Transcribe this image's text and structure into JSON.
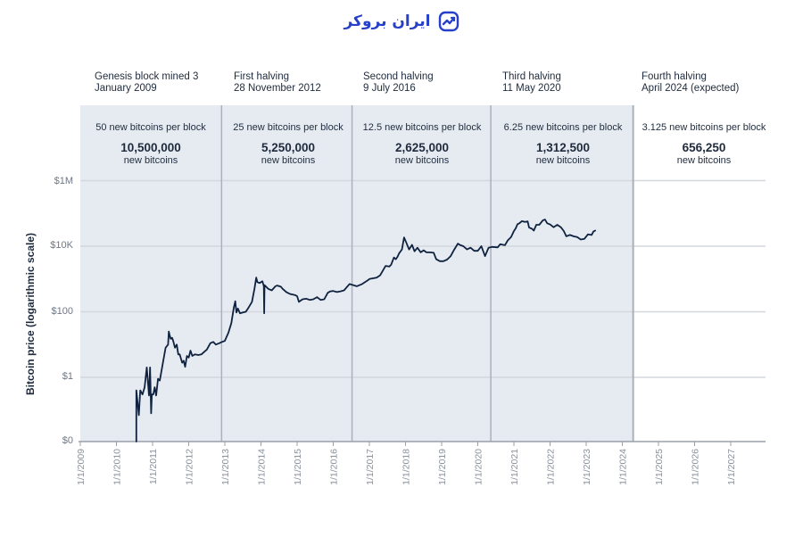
{
  "brand": {
    "name": "ایران بروکر",
    "icon": "chart-trend-logo-icon",
    "color": "#2740c9"
  },
  "halvings": [
    {
      "title": "Genesis block mined 3",
      "date": "January 2009"
    },
    {
      "title": "First halving",
      "date": "28 November 2012"
    },
    {
      "title": "Second halving",
      "date": "9 July 2016"
    },
    {
      "title": "Third halving",
      "date": "11 May 2020"
    },
    {
      "title": "Fourth halving",
      "date": "April 2024 (expected)"
    }
  ],
  "eras": [
    {
      "reward": "50 new bitcoins per block",
      "count": "10,500,000",
      "unit": "new bitcoins"
    },
    {
      "reward": "25 new bitcoins per block",
      "count": "5,250,000",
      "unit": "new bitcoins"
    },
    {
      "reward": "12.5 new bitcoins per block",
      "count": "2,625,000",
      "unit": "new bitcoins"
    },
    {
      "reward": "6.25 new bitcoins per block",
      "count": "1,312,500",
      "unit": "new bitcoins"
    },
    {
      "reward": "3.125 new bitcoins per block",
      "count": "656,250",
      "unit": "new bitcoins"
    }
  ],
  "colors": {
    "shade": "#e6ebf1",
    "grid": "#d4d8de",
    "axis": "#9aa0a8",
    "line": "#0f2240",
    "divider": "#aab1bb"
  },
  "chart_data": {
    "type": "line",
    "title": "",
    "xlabel": "",
    "ylabel": "Bitcoin price (logarithmic scale)",
    "y_scale": "log",
    "y_ticks": [
      {
        "value": 0,
        "label": "$0"
      },
      {
        "value": 1,
        "label": "$1"
      },
      {
        "value": 100,
        "label": "$100"
      },
      {
        "value": 10000,
        "label": "$10K"
      },
      {
        "value": 1000000,
        "label": "$1M"
      }
    ],
    "x_ticks": [
      "1/1/2009",
      "1/1/2010",
      "1/1/2011",
      "1/1/2012",
      "1/1/2013",
      "1/1/2014",
      "1/1/2015",
      "1/1/2016",
      "1/1/2017",
      "1/1/2018",
      "1/1/2019",
      "1/1/2020",
      "1/1/2021",
      "1/1/2022",
      "1/1/2023",
      "1/1/2024",
      "1/1/2025",
      "1/1/2026",
      "1/1/2027"
    ],
    "xlim": [
      2009,
      2027.8
    ],
    "shaded_eras": [
      [
        2009.0,
        2012.91
      ],
      [
        2012.91,
        2016.52
      ],
      [
        2016.52,
        2020.36
      ],
      [
        2020.36,
        2024.3
      ]
    ],
    "halving_dates": [
      2012.91,
      2016.52,
      2020.36,
      2024.3
    ],
    "series": [
      {
        "name": "Bitcoin price (USD)",
        "points": [
          [
            2010.55,
            0
          ],
          [
            2010.55,
            0.4
          ],
          [
            2010.62,
            0.07
          ],
          [
            2010.66,
            0.4
          ],
          [
            2010.72,
            0.3
          ],
          [
            2010.78,
            0.5
          ],
          [
            2010.84,
            2.0
          ],
          [
            2010.9,
            0.28
          ],
          [
            2010.93,
            2.0
          ],
          [
            2010.96,
            0.08
          ],
          [
            2010.98,
            0.3
          ],
          [
            2011.02,
            0.3
          ],
          [
            2011.06,
            0.5
          ],
          [
            2011.1,
            0.28
          ],
          [
            2011.15,
            0.9
          ],
          [
            2011.2,
            0.8
          ],
          [
            2011.28,
            2.5
          ],
          [
            2011.36,
            8
          ],
          [
            2011.43,
            10
          ],
          [
            2011.45,
            25
          ],
          [
            2011.47,
            20
          ],
          [
            2011.5,
            15
          ],
          [
            2011.54,
            16
          ],
          [
            2011.57,
            13
          ],
          [
            2011.62,
            8
          ],
          [
            2011.67,
            10
          ],
          [
            2011.71,
            5
          ],
          [
            2011.75,
            5
          ],
          [
            2011.82,
            2.8
          ],
          [
            2011.86,
            3.2
          ],
          [
            2011.9,
            2.1
          ],
          [
            2011.95,
            4.5
          ],
          [
            2012.0,
            4
          ],
          [
            2012.05,
            6.5
          ],
          [
            2012.1,
            4.5
          ],
          [
            2012.17,
            5
          ],
          [
            2012.27,
            4.8
          ],
          [
            2012.35,
            5
          ],
          [
            2012.43,
            6
          ],
          [
            2012.5,
            7
          ],
          [
            2012.6,
            11
          ],
          [
            2012.68,
            12
          ],
          [
            2012.75,
            10
          ],
          [
            2012.85,
            11
          ],
          [
            2012.92,
            12
          ],
          [
            2013.0,
            13
          ],
          [
            2013.1,
            23
          ],
          [
            2013.18,
            45
          ],
          [
            2013.25,
            135
          ],
          [
            2013.29,
            210
          ],
          [
            2013.32,
            95
          ],
          [
            2013.36,
            125
          ],
          [
            2013.42,
            90
          ],
          [
            2013.5,
            95
          ],
          [
            2013.58,
            100
          ],
          [
            2013.65,
            130
          ],
          [
            2013.75,
            200
          ],
          [
            2013.82,
            500
          ],
          [
            2013.87,
            1100
          ],
          [
            2013.9,
            800
          ],
          [
            2013.96,
            750
          ],
          [
            2014.0,
            800
          ],
          [
            2014.04,
            850
          ],
          [
            2014.08,
            600
          ],
          [
            2014.09,
            90
          ],
          [
            2014.1,
            650
          ],
          [
            2014.2,
            500
          ],
          [
            2014.3,
            450
          ],
          [
            2014.4,
            600
          ],
          [
            2014.45,
            630
          ],
          [
            2014.55,
            580
          ],
          [
            2014.6,
            500
          ],
          [
            2014.7,
            400
          ],
          [
            2014.8,
            350
          ],
          [
            2014.95,
            320
          ],
          [
            2015.0,
            300
          ],
          [
            2015.05,
            200
          ],
          [
            2015.15,
            240
          ],
          [
            2015.25,
            250
          ],
          [
            2015.35,
            230
          ],
          [
            2015.45,
            240
          ],
          [
            2015.55,
            280
          ],
          [
            2015.65,
            230
          ],
          [
            2015.75,
            240
          ],
          [
            2015.85,
            380
          ],
          [
            2015.92,
            420
          ],
          [
            2016.0,
            430
          ],
          [
            2016.1,
            400
          ],
          [
            2016.2,
            420
          ],
          [
            2016.3,
            450
          ],
          [
            2016.45,
            700
          ],
          [
            2016.55,
            650
          ],
          [
            2016.65,
            600
          ],
          [
            2016.8,
            700
          ],
          [
            2016.95,
            900
          ],
          [
            2017.0,
            1000
          ],
          [
            2017.1,
            1050
          ],
          [
            2017.2,
            1100
          ],
          [
            2017.3,
            1300
          ],
          [
            2017.45,
            2500
          ],
          [
            2017.55,
            2400
          ],
          [
            2017.6,
            2700
          ],
          [
            2017.68,
            4500
          ],
          [
            2017.73,
            4000
          ],
          [
            2017.78,
            4800
          ],
          [
            2017.82,
            6000
          ],
          [
            2017.9,
            8000
          ],
          [
            2017.96,
            18500
          ],
          [
            2018.02,
            13000
          ],
          [
            2018.1,
            8000
          ],
          [
            2018.18,
            11000
          ],
          [
            2018.25,
            7000
          ],
          [
            2018.33,
            9000
          ],
          [
            2018.42,
            6500
          ],
          [
            2018.5,
            7500
          ],
          [
            2018.58,
            6500
          ],
          [
            2018.68,
            6500
          ],
          [
            2018.78,
            6300
          ],
          [
            2018.85,
            4000
          ],
          [
            2018.95,
            3500
          ],
          [
            2019.05,
            3500
          ],
          [
            2019.15,
            3900
          ],
          [
            2019.25,
            5000
          ],
          [
            2019.35,
            8000
          ],
          [
            2019.45,
            12000
          ],
          [
            2019.5,
            11000
          ],
          [
            2019.6,
            10000
          ],
          [
            2019.7,
            8000
          ],
          [
            2019.8,
            9000
          ],
          [
            2019.9,
            7200
          ],
          [
            2020.0,
            7200
          ],
          [
            2020.1,
            10000
          ],
          [
            2020.2,
            5000
          ],
          [
            2020.3,
            9000
          ],
          [
            2020.4,
            9500
          ],
          [
            2020.55,
            9200
          ],
          [
            2020.62,
            11500
          ],
          [
            2020.75,
            10700
          ],
          [
            2020.83,
            15000
          ],
          [
            2020.92,
            19000
          ],
          [
            2021.0,
            29000
          ],
          [
            2021.05,
            35000
          ],
          [
            2021.1,
            47000
          ],
          [
            2021.15,
            50000
          ],
          [
            2021.22,
            58000
          ],
          [
            2021.3,
            55000
          ],
          [
            2021.38,
            57000
          ],
          [
            2021.42,
            37000
          ],
          [
            2021.5,
            34000
          ],
          [
            2021.55,
            30000
          ],
          [
            2021.62,
            45000
          ],
          [
            2021.7,
            45000
          ],
          [
            2021.8,
            61000
          ],
          [
            2021.86,
            65000
          ],
          [
            2021.92,
            50000
          ],
          [
            2022.0,
            46000
          ],
          [
            2022.1,
            38000
          ],
          [
            2022.2,
            45000
          ],
          [
            2022.3,
            38000
          ],
          [
            2022.38,
            29000
          ],
          [
            2022.45,
            20000
          ],
          [
            2022.55,
            22000
          ],
          [
            2022.65,
            20000
          ],
          [
            2022.75,
            19000
          ],
          [
            2022.85,
            16000
          ],
          [
            2022.95,
            16800
          ],
          [
            2023.05,
            23000
          ],
          [
            2023.15,
            22000
          ],
          [
            2023.2,
            28000
          ],
          [
            2023.25,
            30000
          ]
        ]
      }
    ]
  }
}
